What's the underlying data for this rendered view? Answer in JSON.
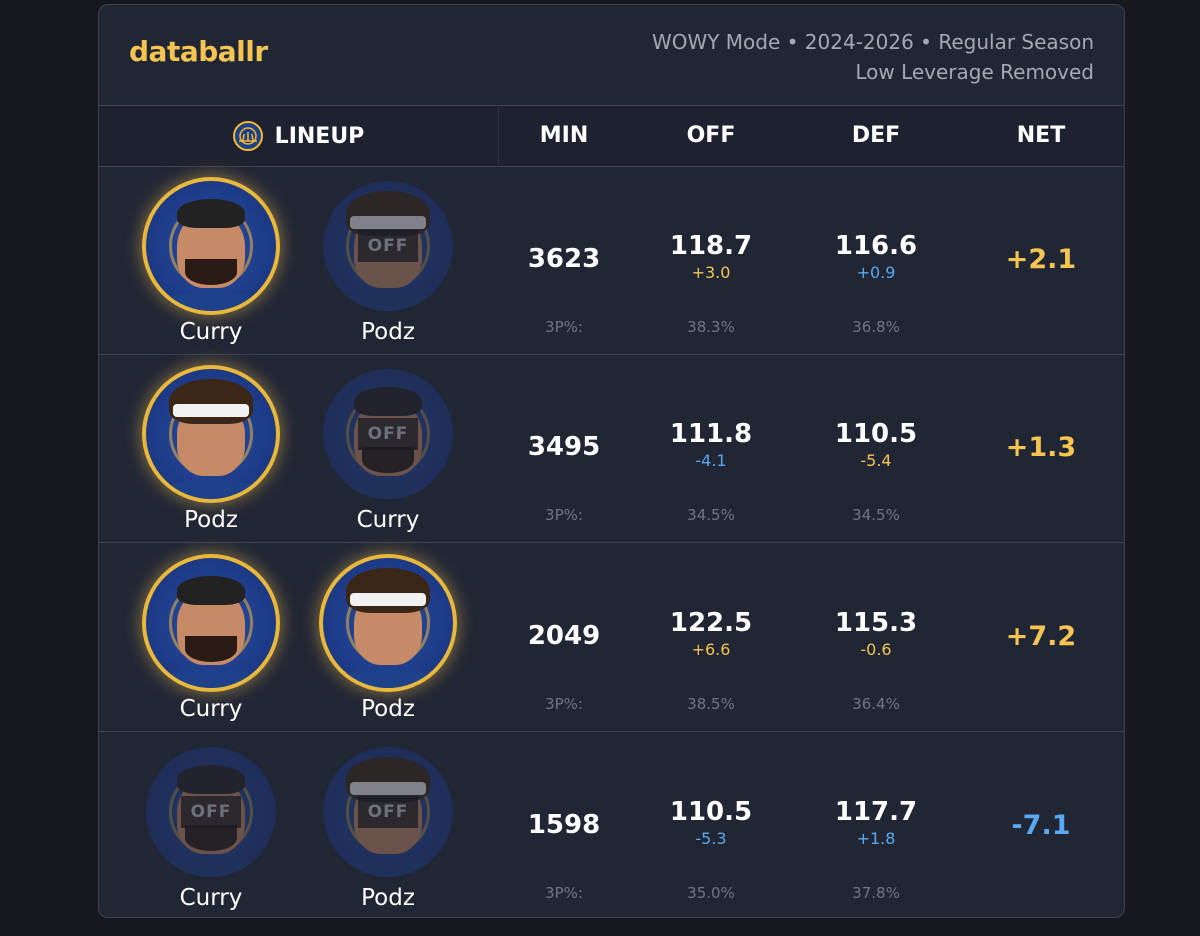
{
  "brand": {
    "logo": "databallr"
  },
  "meta": {
    "line1": "WOWY Mode • 2024-2026 • Regular Season",
    "line2": "Low Leverage Removed"
  },
  "header": {
    "lineup": "LINEUP",
    "min": "MIN",
    "off": "OFF",
    "def": "DEF",
    "net": "NET",
    "team_icon": "warriors-logo-icon"
  },
  "labels": {
    "threept": "3P%:"
  },
  "colors": {
    "accent": "#f5c451",
    "positive": "#f5c451",
    "negative": "#5aa8ef",
    "card": "#212635"
  },
  "rows": [
    {
      "players": [
        {
          "name": "Curry",
          "status": "on"
        },
        {
          "name": "Podz",
          "status": "off",
          "off_label": "OFF"
        }
      ],
      "min": "3623",
      "off": "118.7",
      "off_delta": "+3.0",
      "def": "116.6",
      "def_delta": "+0.9",
      "net": "+2.1",
      "off_3p": "38.3%",
      "def_3p": "36.8%"
    },
    {
      "players": [
        {
          "name": "Podz",
          "status": "on"
        },
        {
          "name": "Curry",
          "status": "off",
          "off_label": "OFF"
        }
      ],
      "min": "3495",
      "off": "111.8",
      "off_delta": "-4.1",
      "def": "110.5",
      "def_delta": "-5.4",
      "net": "+1.3",
      "off_3p": "34.5%",
      "def_3p": "34.5%"
    },
    {
      "players": [
        {
          "name": "Curry",
          "status": "on"
        },
        {
          "name": "Podz",
          "status": "on"
        }
      ],
      "min": "2049",
      "off": "122.5",
      "off_delta": "+6.6",
      "def": "115.3",
      "def_delta": "-0.6",
      "net": "+7.2",
      "off_3p": "38.5%",
      "def_3p": "36.4%"
    },
    {
      "players": [
        {
          "name": "Curry",
          "status": "off",
          "off_label": "OFF"
        },
        {
          "name": "Podz",
          "status": "off",
          "off_label": "OFF"
        }
      ],
      "min": "1598",
      "off": "110.5",
      "off_delta": "-5.3",
      "def": "117.7",
      "def_delta": "+1.8",
      "net": "-7.1",
      "off_3p": "35.0%",
      "def_3p": "37.8%"
    }
  ]
}
